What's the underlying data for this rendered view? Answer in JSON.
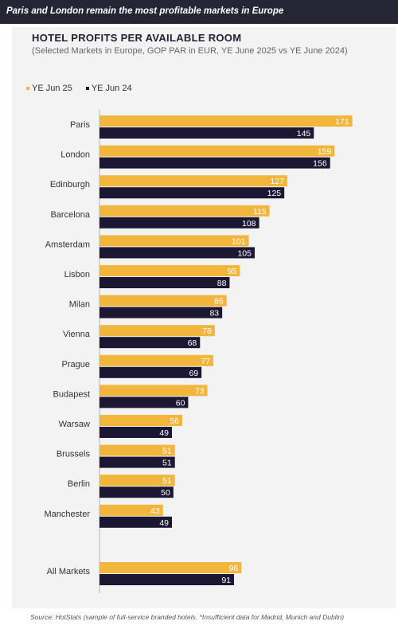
{
  "headline": "Paris and London remain the most profitable markets in Europe",
  "title": "HOTEL PROFITS PER AVAILABLE ROOM",
  "subtitle": "(Selected Markets in Europe, GOP PAR in EUR, YE June 2025 vs YE June 2024)",
  "source": "Source: HotStats (sample of full-service branded hotels. *Insufficient data for Madrid, Munich and Dublin)",
  "colors": {
    "ye25": "#f2b63c",
    "ye24": "#1c1733",
    "headline_bg": "#262536"
  },
  "chart_data": {
    "type": "bar",
    "orientation": "horizontal",
    "title": "HOTEL PROFITS PER AVAILABLE ROOM",
    "subtitle": "(Selected Markets in Europe, GOP PAR in EUR, YE June 2025 vs YE June 2024)",
    "legend_position": "top-left",
    "categories": [
      "Paris",
      "London",
      "Edinburgh",
      "Barcelona",
      "Amsterdam",
      "Lisbon",
      "Milan",
      "Vienna",
      "Prague",
      "Budapest",
      "Warsaw",
      "Brussels",
      "Berlin",
      "Manchester",
      "All Markets"
    ],
    "series": [
      {
        "name": "YE Jun 25",
        "values": [
          171,
          159,
          127,
          115,
          101,
          95,
          86,
          78,
          77,
          73,
          56,
          51,
          51,
          43,
          96
        ]
      },
      {
        "name": "YE Jun 24",
        "values": [
          145,
          156,
          125,
          108,
          105,
          88,
          83,
          68,
          69,
          60,
          49,
          51,
          50,
          49,
          91
        ]
      }
    ],
    "xlim": [
      0,
      175
    ]
  }
}
